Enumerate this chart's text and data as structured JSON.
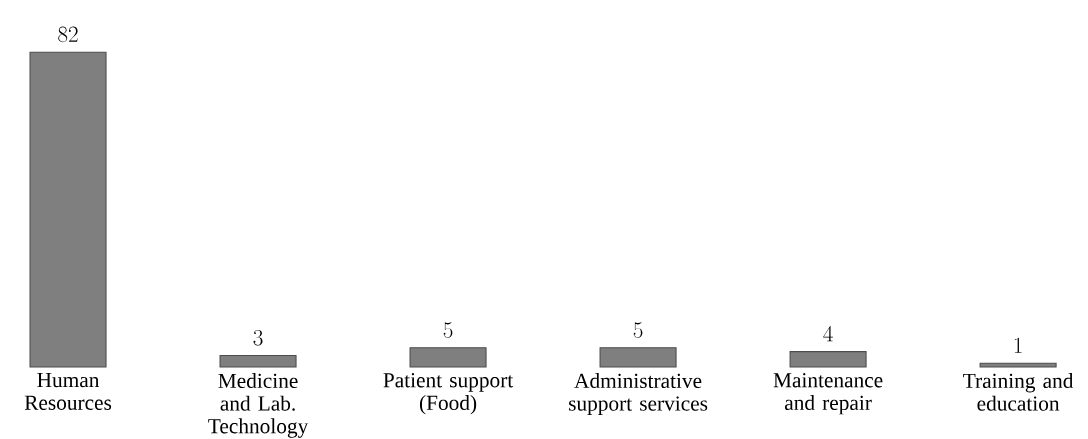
{
  "chart_data": {
    "type": "bar",
    "categories": [
      "Human Resources",
      "Medicine and Lab. Technology",
      "Patient support (Food)",
      "Administrative support services",
      "Maintenance and repair",
      "Training and education"
    ],
    "values": [
      82,
      3,
      5,
      5,
      4,
      1
    ],
    "color": "#7f7f7f",
    "data_labels": true
  }
}
